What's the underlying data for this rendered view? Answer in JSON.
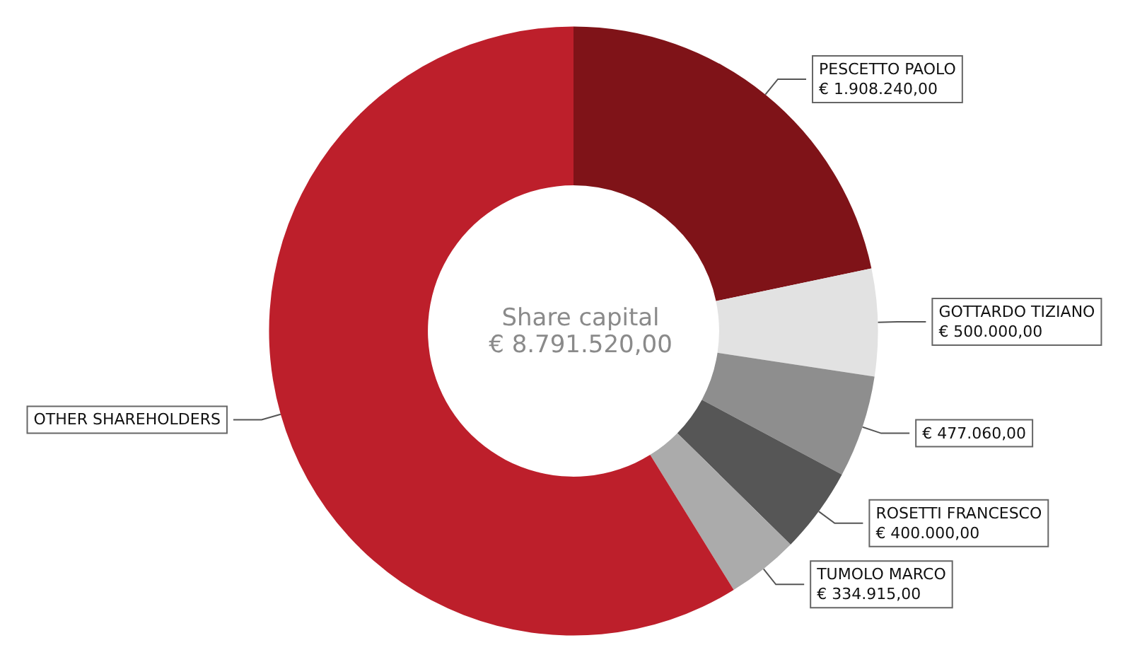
{
  "chart_data": {
    "type": "donut",
    "title": "Share capital",
    "subtitle": "€ 8.791.520,00",
    "categories": [
      "PESCETTO PAOLO",
      "GOTTARDO TIZIANO",
      null,
      "ROSETTI FRANCESCO",
      "TUMOLO MARCO",
      "OTHER SHAREHOLDERS"
    ],
    "values": [
      1908240,
      500000,
      477060,
      400000,
      334915,
      5171305
    ],
    "value_labels": [
      "€ 1.908.240,00",
      "€ 500.000,00",
      "€ 477.060,00",
      "€ 400.000,00",
      "€ 334.915,00",
      null
    ],
    "colors": [
      "#7f1318",
      "#e2e2e2",
      "#8e8e8e",
      "#565656",
      "#ababab",
      "#bd1f2b"
    ],
    "legend": false
  }
}
